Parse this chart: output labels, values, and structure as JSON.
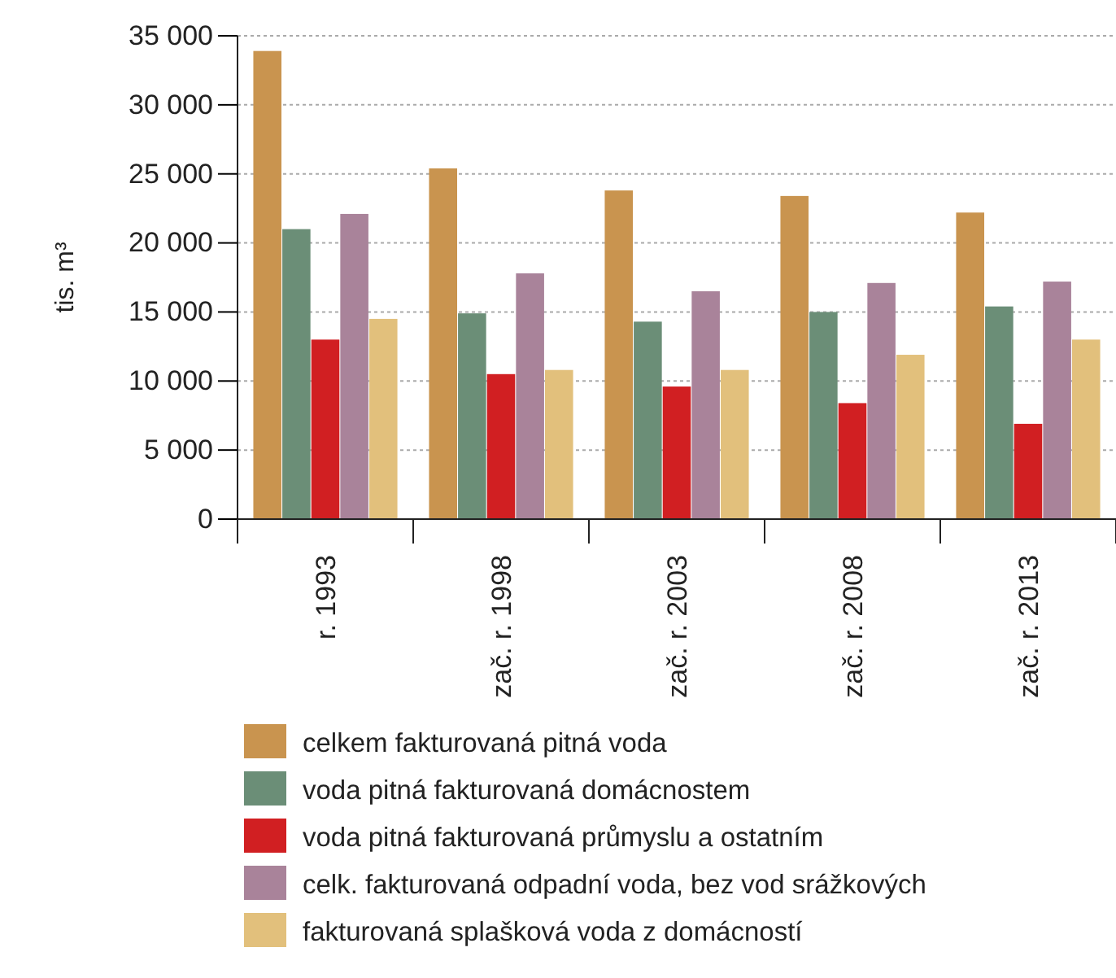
{
  "chart_data": {
    "type": "bar",
    "ylabel": "tis. m³",
    "categories": [
      "r. 1993",
      "zač. r. 1998",
      "zač. r. 2003",
      "zač. r. 2008",
      "zač. r. 2013"
    ],
    "series": [
      {
        "name": "celkem fakturovaná pitná voda",
        "color": "#c9944f",
        "values": [
          33900,
          25400,
          23800,
          23400,
          22200
        ]
      },
      {
        "name": "voda pitná fakturovaná domácnostem",
        "color": "#6b8e77",
        "values": [
          21000,
          14900,
          14300,
          15000,
          15400
        ]
      },
      {
        "name": "voda pitná fakturovaná průmyslu a ostatním",
        "color": "#d11f22",
        "values": [
          13000,
          10500,
          9600,
          8400,
          6900
        ]
      },
      {
        "name": "celk. fakturovaná odpadní voda, bez vod srážkových",
        "color": "#a9839a",
        "values": [
          22100,
          17800,
          16500,
          17100,
          17200
        ]
      },
      {
        "name": "fakturovaná splašková voda z domácností",
        "color": "#e2c07c",
        "values": [
          14500,
          10800,
          10800,
          11900,
          13000
        ]
      }
    ],
    "ylim": [
      0,
      35000
    ],
    "yticks": [
      {
        "value": 0,
        "label": "0"
      },
      {
        "value": 5000,
        "label": "5 000"
      },
      {
        "value": 10000,
        "label": "10 000"
      },
      {
        "value": 15000,
        "label": "15 000"
      },
      {
        "value": 20000,
        "label": "20 000"
      },
      {
        "value": 25000,
        "label": "25 000"
      },
      {
        "value": 30000,
        "label": "30 000"
      },
      {
        "value": 35000,
        "label": "35 000"
      }
    ],
    "grid": "y",
    "legend": "bottom"
  }
}
